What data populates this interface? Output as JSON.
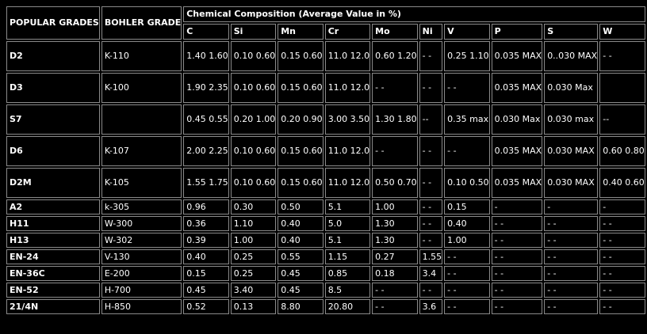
{
  "headers": {
    "popular": "POPULAR\nGRADES",
    "bohler": "BOHLER\nGRADE",
    "composition": "Chemical Composition (Average Value in %)",
    "elements": [
      "C",
      "Si",
      "Mn",
      "Cr",
      "Mo",
      "Ni",
      "V",
      "P",
      "S",
      "W"
    ]
  },
  "rows": [
    {
      "grade": "D2",
      "bohler": "K-110",
      "values": [
        "1.40\n1.60",
        "0.10\n0.60",
        "0.15\n0.60",
        "11.0\n12.0",
        "0.60\n1.20",
        "- -",
        "0.25\n1.10",
        "0.035\nMAX",
        "0..030\nMAX",
        "- -"
      ]
    },
    {
      "grade": "D3",
      "bohler": "K-100",
      "values": [
        "1.90\n2.35",
        "0.10\n0.60",
        "0.15\n0.60",
        "11.0\n12.0",
        "- -",
        "- -",
        "- -",
        "0.035\nMAX",
        "0.030 Max",
        ""
      ]
    },
    {
      "grade": "S7",
      "bohler": "",
      "values": [
        "0.45\n0.55",
        "0.20\n1.00",
        "0.20\n0.90",
        "3.00\n3.50",
        "1.30\n1.80",
        "--",
        "0.35\nmax",
        "0.030 Max",
        "0.030\nmax",
        "--"
      ]
    },
    {
      "grade": "D6",
      "bohler": "K-107",
      "values": [
        "2.00\n2.25",
        "0.10\n0.60",
        "0.15\n0.60",
        "11.0\n12.0",
        "- -",
        "- -",
        "- -",
        "0.035\nMAX",
        "0.030 MAX",
        "0.60\n0.80"
      ]
    },
    {
      "grade": "D2M",
      "bohler": "K-105",
      "values": [
        "1.55\n1.75",
        "0.10\n0.60",
        "0.15\n0.60",
        "11.0\n12.0",
        "0.50\n0.70",
        "- -",
        "0.10\n0.50",
        "0.035\nMAX",
        "0.030 MAX",
        "0.40\n0.60"
      ]
    },
    {
      "grade": "A2",
      "bohler": "k-305",
      "values": [
        "0.96",
        "0.30",
        "0.50",
        "5.1",
        "1.00",
        "- -",
        "0.15",
        "-",
        "-",
        "-"
      ]
    },
    {
      "grade": "H11",
      "bohler": "W-300",
      "values": [
        "0.36",
        "1.10",
        "0.40",
        "5.0",
        "1.30",
        "- -",
        "0.40",
        "- -",
        "- -",
        "- -"
      ]
    },
    {
      "grade": "H13",
      "bohler": "W-302",
      "values": [
        "0.39",
        "1.00",
        "0.40",
        "5.1",
        "1.30",
        "- -",
        "1.00",
        "- -",
        "- -",
        "- -"
      ]
    },
    {
      "grade": "EN-24",
      "bohler": "V-130",
      "values": [
        "0.40",
        "0.25",
        "0.55",
        "1.15",
        "0.27",
        "1.55",
        "- -",
        "- -",
        "- -",
        "- -"
      ]
    },
    {
      "grade": "EN-36C",
      "bohler": "E-200",
      "values": [
        "0.15",
        "0.25",
        "0.45",
        "0.85",
        "0.18",
        "3.4",
        "- -",
        "- -",
        "- -",
        "- -"
      ]
    },
    {
      "grade": "EN-52",
      "bohler": "H-700",
      "values": [
        "0.45",
        "3.40",
        "0.45",
        "8.5",
        "- -",
        "- -",
        "- -",
        "- -",
        "- -",
        "- -"
      ]
    },
    {
      "grade": "21/4N",
      "bohler": "H-850",
      "values": [
        "0.52",
        "0.13",
        "8.80",
        "20.80",
        "- -",
        "3.6",
        "- -",
        "- -",
        "- -",
        "- -"
      ]
    }
  ]
}
